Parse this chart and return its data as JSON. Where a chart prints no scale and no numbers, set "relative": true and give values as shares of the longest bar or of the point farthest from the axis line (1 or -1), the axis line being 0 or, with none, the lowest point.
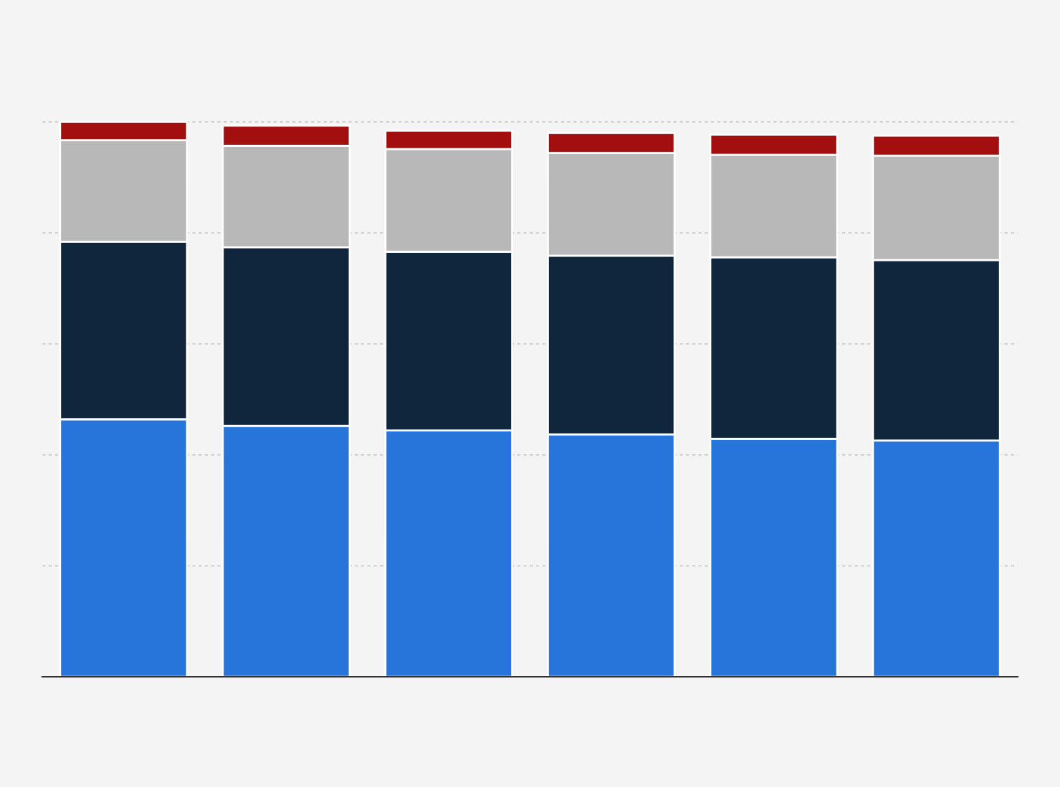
{
  "chart_data": {
    "type": "bar",
    "stacked": true,
    "relative": true,
    "grid": "y",
    "categories": [
      null,
      null,
      null,
      null,
      null,
      null
    ],
    "series": [
      {
        "color": "#2775db",
        "values": [
          0.464,
          0.452,
          0.444,
          0.437,
          0.429,
          0.426
        ]
      },
      {
        "color": "#0f263c",
        "values": [
          0.32,
          0.322,
          0.322,
          0.322,
          0.327,
          0.325
        ]
      },
      {
        "color": "#b8b8b8",
        "values": [
          0.183,
          0.183,
          0.185,
          0.185,
          0.185,
          0.188
        ]
      },
      {
        "color": "#a30f0f",
        "values": [
          0.033,
          0.036,
          0.033,
          0.036,
          0.036,
          0.036
        ]
      }
    ]
  }
}
